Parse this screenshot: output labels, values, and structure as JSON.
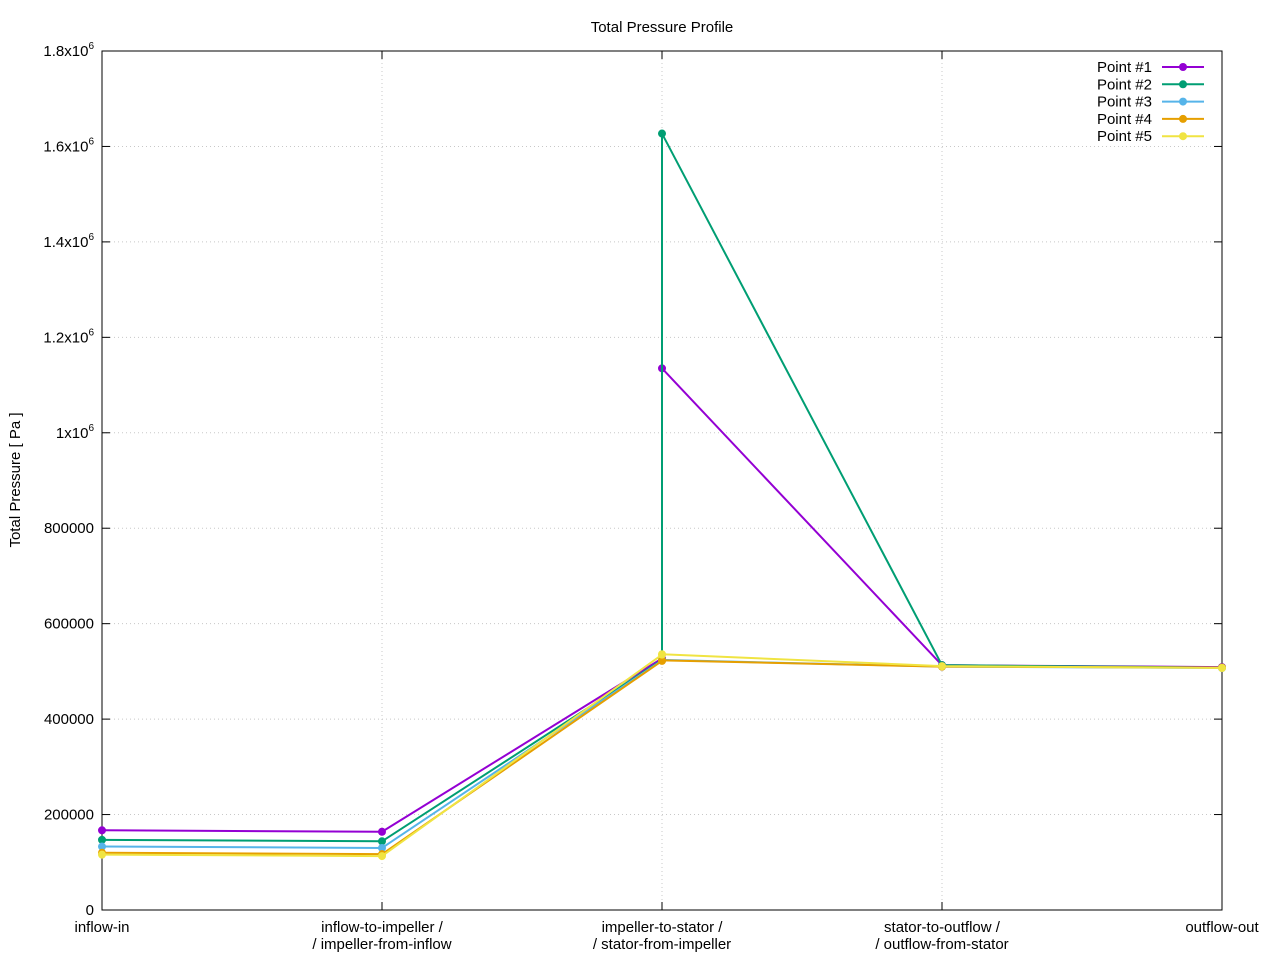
{
  "chart_data": {
    "type": "line",
    "title": "Total Pressure Profile",
    "xlabel": "",
    "ylabel": "Total Pressure [ Pa ]",
    "ylim": [
      0,
      1800000
    ],
    "grid": true,
    "legend_position": "top-right",
    "categories": [
      [
        "inflow-in"
      ],
      [
        "inflow-to-impeller /",
        "/ impeller-from-inflow"
      ],
      [
        "impeller-to-stator /",
        "/ stator-from-impeller"
      ],
      [
        "stator-to-outflow /",
        "/ outflow-from-stator"
      ],
      [
        "outflow-out"
      ]
    ],
    "y_ticks": [
      {
        "value": 0,
        "label": "0"
      },
      {
        "value": 200000,
        "label": "200000"
      },
      {
        "value": 400000,
        "label": "400000"
      },
      {
        "value": 600000,
        "label": "600000"
      },
      {
        "value": 800000,
        "label": "800000"
      },
      {
        "value": 1000000,
        "label": "1x10",
        "sup": "6"
      },
      {
        "value": 1200000,
        "label": "1.2x10",
        "sup": "6"
      },
      {
        "value": 1400000,
        "label": "1.4x10",
        "sup": "6"
      },
      {
        "value": 1600000,
        "label": "1.6x10",
        "sup": "6"
      },
      {
        "value": 1800000,
        "label": "1.8x10",
        "sup": "6"
      }
    ],
    "series": [
      {
        "name": "Point #1",
        "color": "#9400d3",
        "points": [
          [
            0,
            167000
          ],
          [
            1,
            164000
          ],
          [
            2,
            527000
          ],
          [
            2,
            1135000
          ],
          [
            3,
            513000
          ],
          [
            4,
            509000
          ]
        ]
      },
      {
        "name": "Point #2",
        "color": "#009e73",
        "points": [
          [
            0,
            147000
          ],
          [
            1,
            144000
          ],
          [
            2,
            524000
          ],
          [
            2,
            1627000
          ],
          [
            3,
            513000
          ],
          [
            4,
            508000
          ]
        ]
      },
      {
        "name": "Point #3",
        "color": "#56b4e9",
        "points": [
          [
            0,
            133000
          ],
          [
            1,
            130000
          ],
          [
            2,
            523000
          ],
          [
            2,
            524000
          ],
          [
            3,
            510000
          ],
          [
            4,
            507000
          ]
        ]
      },
      {
        "name": "Point #4",
        "color": "#e69f00",
        "points": [
          [
            0,
            120000
          ],
          [
            1,
            117000
          ],
          [
            2,
            522000
          ],
          [
            2,
            523000
          ],
          [
            3,
            510000
          ],
          [
            4,
            508000
          ]
        ]
      },
      {
        "name": "Point #5",
        "color": "#f0e442",
        "points": [
          [
            0,
            116000
          ],
          [
            1,
            113000
          ],
          [
            2,
            535000
          ],
          [
            2,
            536000
          ],
          [
            3,
            511000
          ],
          [
            4,
            507000
          ]
        ]
      }
    ]
  }
}
